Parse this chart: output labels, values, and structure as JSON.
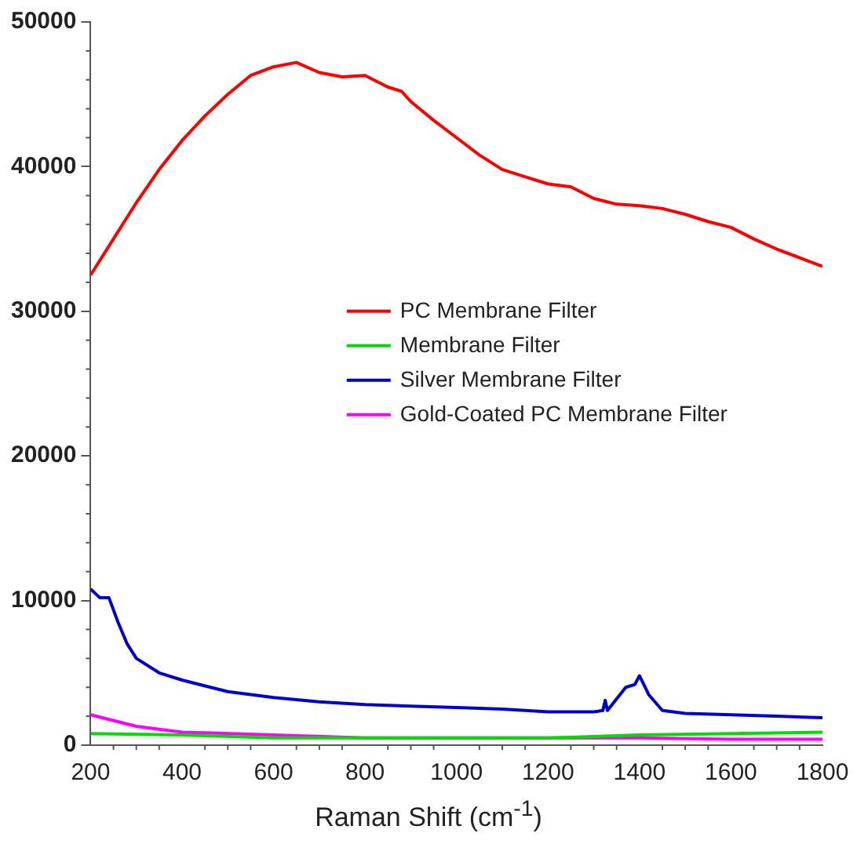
{
  "chart_data": {
    "type": "line",
    "xlabel": "Raman Shift (cm$^{-1}$)",
    "xlim": [
      200,
      1800
    ],
    "xticks": [
      200,
      400,
      600,
      800,
      1000,
      1200,
      1400,
      1600,
      1800
    ],
    "ylim": [
      0,
      50000
    ],
    "yticks": [
      0,
      10000,
      20000,
      30000,
      40000,
      50000
    ],
    "grid": false,
    "legend": "right",
    "marker": "none",
    "line_style": "solid",
    "series": [
      {
        "name": "PC Membrane Filter",
        "color": "#ff0000",
        "x": [
          200,
          250,
          300,
          350,
          400,
          450,
          500,
          550,
          600,
          650,
          700,
          750,
          800,
          850,
          880,
          900,
          950,
          1000,
          1050,
          1100,
          1150,
          1200,
          1250,
          1300,
          1350,
          1400,
          1450,
          1500,
          1550,
          1600,
          1650,
          1700,
          1750,
          1800
        ],
        "values": [
          32500,
          35000,
          37500,
          39800,
          41800,
          43500,
          45000,
          46300,
          46900,
          47200,
          46500,
          46200,
          46300,
          45500,
          45200,
          44500,
          43200,
          42000,
          40800,
          39800,
          39300,
          38800,
          38600,
          37800,
          37400,
          37300,
          37100,
          36700,
          36200,
          35800,
          35000,
          34300,
          33700,
          33100
        ]
      },
      {
        "name": "Membrane Filter",
        "color": "#00dd00",
        "x": [
          200,
          400,
          600,
          800,
          1000,
          1200,
          1400,
          1600,
          1800
        ],
        "values": [
          800,
          700,
          500,
          500,
          500,
          500,
          700,
          800,
          900
        ]
      },
      {
        "name": "Silver Membrane Filter",
        "color": "#0000cc",
        "x": [
          200,
          220,
          240,
          260,
          280,
          300,
          350,
          400,
          500,
          600,
          700,
          800,
          900,
          1000,
          1100,
          1200,
          1300,
          1320,
          1325,
          1330,
          1350,
          1370,
          1390,
          1400,
          1420,
          1450,
          1500,
          1600,
          1700,
          1800
        ],
        "values": [
          10800,
          10200,
          10200,
          8500,
          7000,
          6000,
          5000,
          4500,
          3700,
          3300,
          3000,
          2800,
          2700,
          2600,
          2500,
          2300,
          2300,
          2400,
          3100,
          2400,
          3200,
          4000,
          4200,
          4800,
          3500,
          2400,
          2200,
          2100,
          2000,
          1900
        ]
      },
      {
        "name": "Gold-Coated PC Membrane Filter",
        "color": "#ff00ff",
        "x": [
          200,
          300,
          400,
          600,
          800,
          1000,
          1200,
          1400,
          1600,
          1800
        ],
        "values": [
          2100,
          1300,
          900,
          700,
          500,
          500,
          500,
          500,
          400,
          400
        ]
      }
    ]
  }
}
